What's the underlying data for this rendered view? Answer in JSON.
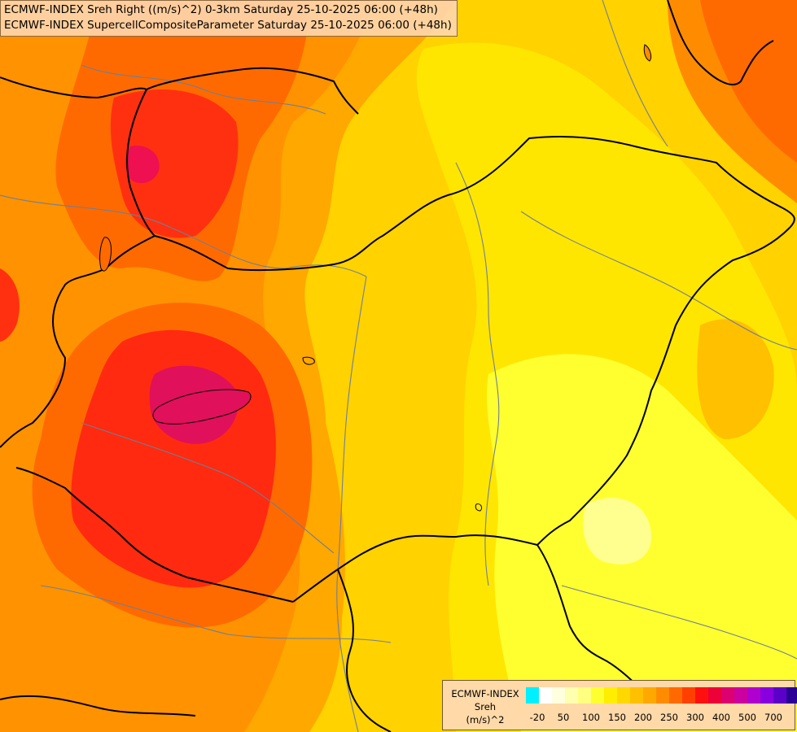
{
  "header": {
    "line1": "ECMWF-INDEX Sreh Right ((m/s)^2) 0-3km Saturday 25-10-2025 06:00 (+48h)",
    "line2": "ECMWF-INDEX SupercellCompositeParameter Saturday 25-10-2025 06:00 (+48h)"
  },
  "legend": {
    "source": "ECMWF-INDEX",
    "variable": "Sreh",
    "unit": "(m/s)^2",
    "colors": [
      "#00f0ff",
      "#ffffff",
      "#ffffe0",
      "#ffffb0",
      "#ffff80",
      "#ffff30",
      "#ffee00",
      "#ffd800",
      "#ffc000",
      "#ffa800",
      "#ff8c00",
      "#ff6a00",
      "#ff4000",
      "#ff1010",
      "#ee0038",
      "#dd0070",
      "#cc00a0",
      "#b000d0",
      "#8800e0",
      "#5a00c8",
      "#2a0096",
      "#000070"
    ],
    "ticks": [
      "-20",
      "50",
      "100",
      "150",
      "200",
      "250",
      "300",
      "400",
      "500",
      "700"
    ]
  },
  "colors": {
    "background": "#ffd200",
    "border_line": "#000000",
    "river_line": "#6f7f95"
  }
}
